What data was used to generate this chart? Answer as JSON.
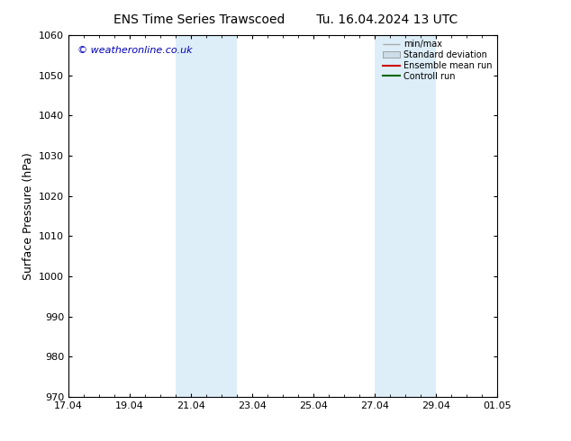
{
  "title_left": "ENS Time Series Trawscoed",
  "title_right": "Tu. 16.04.2024 13 UTC",
  "ylabel": "Surface Pressure (hPa)",
  "ylim": [
    970,
    1060
  ],
  "yticks": [
    970,
    980,
    990,
    1000,
    1010,
    1020,
    1030,
    1040,
    1050,
    1060
  ],
  "xlim": [
    0,
    14
  ],
  "xtick_labels": [
    "17.04",
    "19.04",
    "21.04",
    "23.04",
    "25.04",
    "27.04",
    "29.04",
    "01.05"
  ],
  "xtick_positions": [
    0,
    2,
    4,
    6,
    8,
    10,
    12,
    14
  ],
  "shaded_regions": [
    {
      "start": 3.5,
      "end": 5.5
    },
    {
      "start": 10.0,
      "end": 12.0
    }
  ],
  "shaded_color": "#ddeef8",
  "watermark_text": "© weatheronline.co.uk",
  "watermark_color": "#0000bb",
  "background_color": "#ffffff",
  "legend_entries": [
    {
      "label": "min/max",
      "color": "#aaaaaa",
      "lw": 1.0
    },
    {
      "label": "Standard deviation",
      "color": "#ccdde8",
      "lw": 6
    },
    {
      "label": "Ensemble mean run",
      "color": "#cc0000",
      "lw": 1.5
    },
    {
      "label": "Controll run",
      "color": "#006600",
      "lw": 1.5
    }
  ],
  "spine_color": "#000000",
  "tick_color": "#000000",
  "font_color": "#000000",
  "title_fontsize": 10,
  "axis_fontsize": 8,
  "ylabel_fontsize": 9,
  "watermark_fontsize": 8
}
